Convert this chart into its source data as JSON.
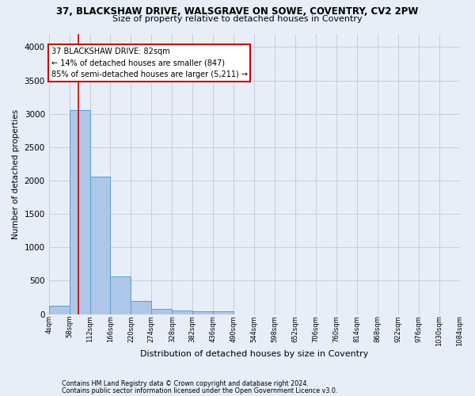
{
  "title_line1": "37, BLACKSHAW DRIVE, WALSGRAVE ON SOWE, COVENTRY, CV2 2PW",
  "title_line2": "Size of property relative to detached houses in Coventry",
  "xlabel": "Distribution of detached houses by size in Coventry",
  "ylabel": "Number of detached properties",
  "bar_color": "#aec6e8",
  "bar_edge_color": "#5a9fd4",
  "bar_left_edges": [
    4,
    58,
    112,
    166,
    220,
    274,
    328,
    382,
    436,
    490,
    544,
    598,
    652,
    706,
    760,
    814,
    868,
    922,
    976,
    1030
  ],
  "bar_heights": [
    130,
    3060,
    2060,
    560,
    195,
    80,
    55,
    40,
    38,
    0,
    0,
    0,
    0,
    0,
    0,
    0,
    0,
    0,
    0,
    0
  ],
  "bin_width": 54,
  "xtick_labels": [
    "4sqm",
    "58sqm",
    "112sqm",
    "166sqm",
    "220sqm",
    "274sqm",
    "328sqm",
    "382sqm",
    "436sqm",
    "490sqm",
    "544sqm",
    "598sqm",
    "652sqm",
    "706sqm",
    "760sqm",
    "814sqm",
    "868sqm",
    "922sqm",
    "976sqm",
    "1030sqm",
    "1084sqm"
  ],
  "ylim": [
    0,
    4200
  ],
  "yticks": [
    0,
    500,
    1000,
    1500,
    2000,
    2500,
    3000,
    3500,
    4000
  ],
  "property_size": 82,
  "vline_color": "#cc0000",
  "annotation_text": "37 BLACKSHAW DRIVE: 82sqm\n← 14% of detached houses are smaller (847)\n85% of semi-detached houses are larger (5,211) →",
  "annotation_box_edgecolor": "#cc0000",
  "annotation_fill": "white",
  "grid_color": "#c0c8d8",
  "background_color": "#e8eef8",
  "footer_line1": "Contains HM Land Registry data © Crown copyright and database right 2024.",
  "footer_line2": "Contains public sector information licensed under the Open Government Licence v3.0."
}
